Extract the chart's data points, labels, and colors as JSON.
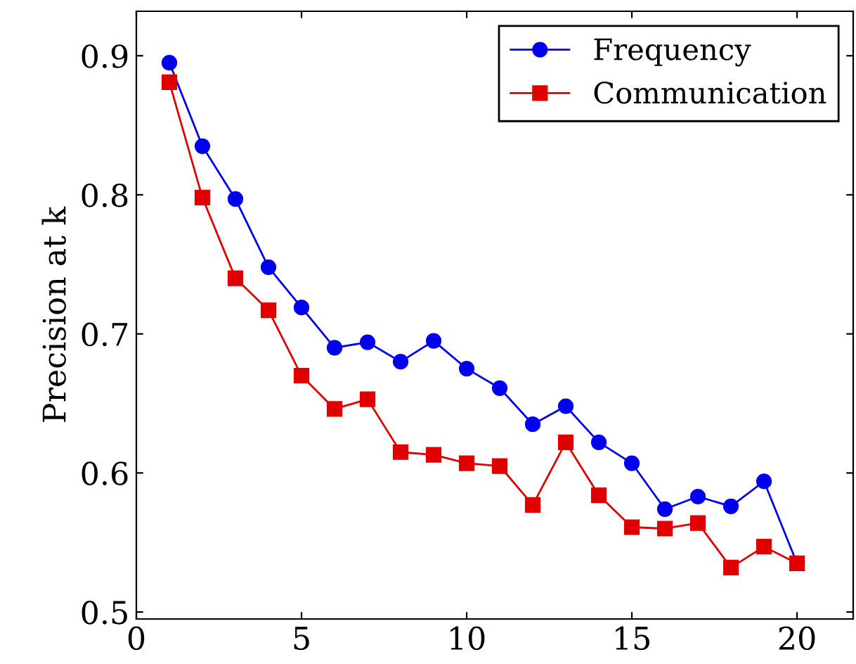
{
  "chart_data": {
    "type": "line",
    "ylabel": "Precision at k",
    "x": [
      1,
      2,
      3,
      4,
      5,
      6,
      7,
      8,
      9,
      10,
      11,
      12,
      13,
      14,
      15,
      16,
      17,
      18,
      19,
      20
    ],
    "series": [
      {
        "name": "Frequency",
        "color": "#0000ee",
        "marker": "circle",
        "values": [
          0.895,
          0.835,
          0.797,
          0.748,
          0.719,
          0.69,
          0.694,
          0.68,
          0.695,
          0.675,
          0.661,
          0.635,
          0.648,
          0.622,
          0.607,
          0.574,
          0.583,
          0.576,
          0.594,
          0.535
        ]
      },
      {
        "name": "Communication",
        "color": "#e00000",
        "marker": "square",
        "values": [
          0.881,
          0.798,
          0.74,
          0.717,
          0.67,
          0.646,
          0.653,
          0.615,
          0.613,
          0.607,
          0.605,
          0.577,
          0.622,
          0.584,
          0.561,
          0.56,
          0.564,
          0.532,
          0.547,
          0.535
        ]
      }
    ],
    "xlim": [
      0,
      21.7
    ],
    "xticks": [
      0,
      5,
      10,
      15,
      20
    ],
    "ylim": [
      0.495,
      0.932
    ],
    "yticks": [
      {
        "value": 0.5,
        "label": "0.5"
      },
      {
        "value": 0.6,
        "label": "0.6"
      },
      {
        "value": 0.7,
        "label": "0.7"
      },
      {
        "value": 0.8,
        "label": "0.8"
      },
      {
        "value": 0.9,
        "label": "0.9"
      }
    ],
    "grid": false,
    "legend": "top right",
    "line_style": "solid"
  }
}
